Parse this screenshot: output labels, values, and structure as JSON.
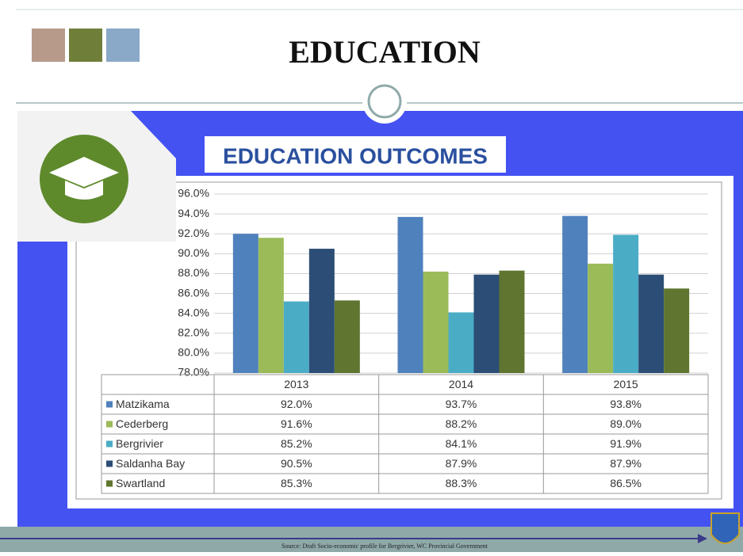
{
  "header": {
    "title": "EDUCATION"
  },
  "footer": {
    "source": "Source: Draft Socio-economic profile for Bergrivier, WC Provincial Government"
  },
  "chart_data": {
    "type": "bar",
    "title": "EDUCATION OUTCOMES",
    "categories": [
      "2013",
      "2014",
      "2015"
    ],
    "series": [
      {
        "name": "Matzikama",
        "color": "#4f81bd",
        "values": [
          92.0,
          93.7,
          93.8
        ],
        "value_labels": [
          "92.0%",
          "93.7%",
          "93.8%"
        ]
      },
      {
        "name": "Cederberg",
        "color": "#9bbb59",
        "values": [
          91.6,
          88.2,
          89.0
        ],
        "value_labels": [
          "91.6%",
          "88.2%",
          "89.0%"
        ]
      },
      {
        "name": "Bergrivier",
        "color": "#4bacc6",
        "values": [
          85.2,
          84.1,
          91.9
        ],
        "value_labels": [
          "85.2%",
          "84.1%",
          "91.9%"
        ]
      },
      {
        "name": "Saldanha Bay",
        "color": "#2c4d75",
        "values": [
          90.5,
          87.9,
          87.9
        ],
        "value_labels": [
          "90.5%",
          "87.9%",
          "87.9%"
        ]
      },
      {
        "name": "Swartland",
        "color": "#5f7530",
        "values": [
          85.3,
          88.3,
          86.5
        ],
        "value_labels": [
          "85.3%",
          "88.3%",
          "86.5%"
        ]
      }
    ],
    "ylim": [
      78,
      96
    ],
    "yticks": [
      {
        "value": 78,
        "label": "78.0%"
      },
      {
        "value": 80,
        "label": "80.0%"
      },
      {
        "value": 82,
        "label": "82.0%"
      },
      {
        "value": 84,
        "label": "84.0%"
      },
      {
        "value": 86,
        "label": "86.0%"
      },
      {
        "value": 88,
        "label": "88.0%"
      },
      {
        "value": 90,
        "label": "90.0%"
      },
      {
        "value": 92,
        "label": "92.0%"
      },
      {
        "value": 94,
        "label": "94.0%"
      },
      {
        "value": 96,
        "label": "96.0%"
      }
    ],
    "grid": true
  }
}
